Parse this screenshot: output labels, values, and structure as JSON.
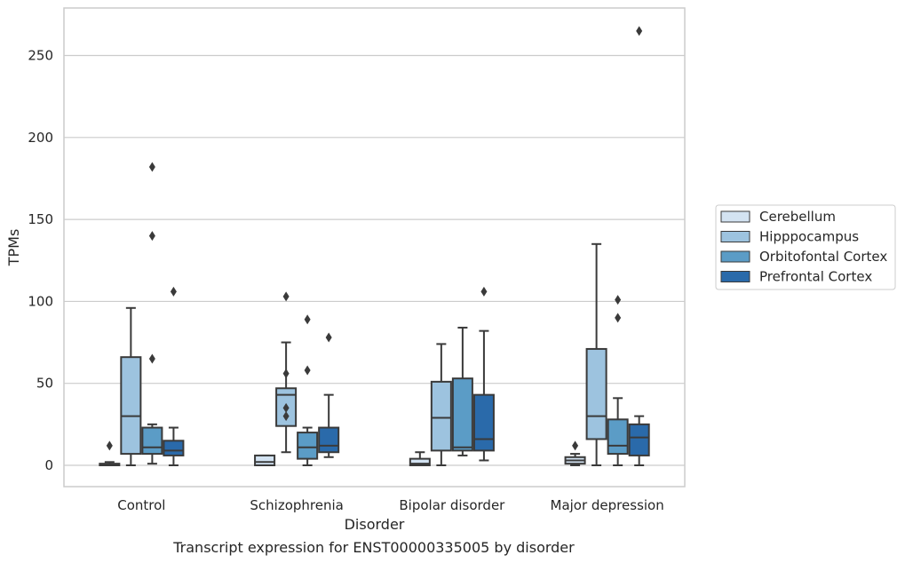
{
  "chart_data": {
    "type": "box",
    "caption": "Transcript expression for ENST00000335005 by disorder",
    "xlabel": "Disorder",
    "ylabel": "TPMs",
    "ylim": [
      -13,
      279
    ],
    "yticks": [
      0,
      50,
      100,
      150,
      200,
      250
    ],
    "grid": "horizontal",
    "legend_position": "right",
    "categories": [
      "Control",
      "Schizophrenia",
      "Bipolar disorder",
      "Major depression"
    ],
    "series": [
      {
        "name": "Cerebellum",
        "color": "#d3e3f2",
        "boxes": [
          {
            "whisker_low": 0,
            "q1": 0,
            "median": 0.5,
            "q3": 1,
            "whisker_high": 2,
            "outliers": [
              12
            ]
          },
          {
            "whisker_low": 0,
            "q1": 0,
            "median": 2,
            "q3": 6,
            "whisker_high": 6,
            "outliers": []
          },
          {
            "whisker_low": 0,
            "q1": 0,
            "median": 1,
            "q3": 4,
            "whisker_high": 8,
            "outliers": []
          },
          {
            "whisker_low": 0,
            "q1": 1,
            "median": 3,
            "q3": 5,
            "whisker_high": 7,
            "outliers": [
              12
            ]
          }
        ]
      },
      {
        "name": "Hipppocampus",
        "color": "#9dc3df",
        "boxes": [
          {
            "whisker_low": 0,
            "q1": 7,
            "median": 30,
            "q3": 66,
            "whisker_high": 96,
            "outliers": []
          },
          {
            "whisker_low": 8,
            "q1": 24,
            "median": 43,
            "q3": 47,
            "whisker_high": 75,
            "outliers": [
              30,
              35,
              56,
              103
            ]
          },
          {
            "whisker_low": 0,
            "q1": 9,
            "median": 29,
            "q3": 51,
            "whisker_high": 74,
            "outliers": []
          },
          {
            "whisker_low": 0,
            "q1": 16,
            "median": 30,
            "q3": 71,
            "whisker_high": 135,
            "outliers": []
          }
        ]
      },
      {
        "name": "Orbitofontal Cortex",
        "color": "#5b9cc6",
        "boxes": [
          {
            "whisker_low": 1,
            "q1": 7,
            "median": 11,
            "q3": 23,
            "whisker_high": 25,
            "outliers": [
              65,
              140,
              182
            ]
          },
          {
            "whisker_low": 0,
            "q1": 4,
            "median": 11,
            "q3": 20,
            "whisker_high": 23,
            "outliers": [
              58,
              89
            ]
          },
          {
            "whisker_low": 6,
            "q1": 9,
            "median": 11,
            "q3": 53,
            "whisker_high": 84,
            "outliers": []
          },
          {
            "whisker_low": 0,
            "q1": 7,
            "median": 12,
            "q3": 28,
            "whisker_high": 41,
            "outliers": [
              90,
              101
            ]
          }
        ]
      },
      {
        "name": "Prefrontal Cortex",
        "color": "#2a6aaa",
        "boxes": [
          {
            "whisker_low": 0,
            "q1": 6,
            "median": 9,
            "q3": 15,
            "whisker_high": 23,
            "outliers": [
              106
            ]
          },
          {
            "whisker_low": 5,
            "q1": 8,
            "median": 12,
            "q3": 23,
            "whisker_high": 43,
            "outliers": [
              78
            ]
          },
          {
            "whisker_low": 3,
            "q1": 9,
            "median": 16,
            "q3": 43,
            "whisker_high": 82,
            "outliers": [
              106
            ]
          },
          {
            "whisker_low": 0,
            "q1": 6,
            "median": 17,
            "q3": 25,
            "whisker_high": 30,
            "outliers": [
              265
            ]
          }
        ]
      }
    ]
  }
}
